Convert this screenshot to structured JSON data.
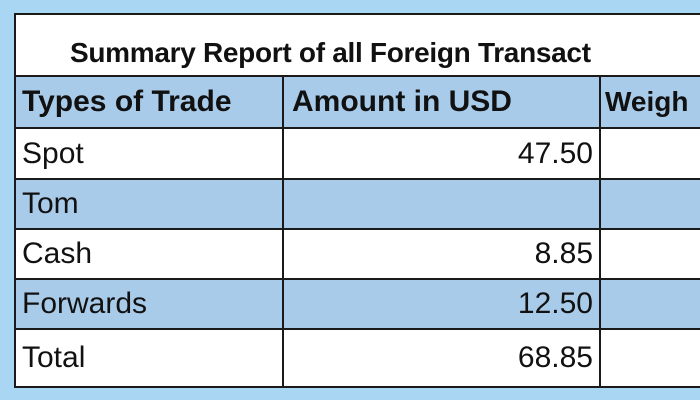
{
  "title": "Summary Report of all Foreign Transact",
  "columns": [
    "Types of Trade",
    "Amount in USD",
    "Weigh"
  ],
  "rows": [
    {
      "type": "Spot",
      "amount": "47.50",
      "weight": ""
    },
    {
      "type": "Tom",
      "amount": "",
      "weight": ""
    },
    {
      "type": "Cash",
      "amount": "8.85",
      "weight": ""
    },
    {
      "type": "Forwards",
      "amount": "12.50",
      "weight": ""
    },
    {
      "type": "Total",
      "amount": "68.85",
      "weight": ""
    }
  ],
  "colors": {
    "background": "#a9d6f2",
    "band": "#a9cbea",
    "border": "#1a1a1a"
  }
}
